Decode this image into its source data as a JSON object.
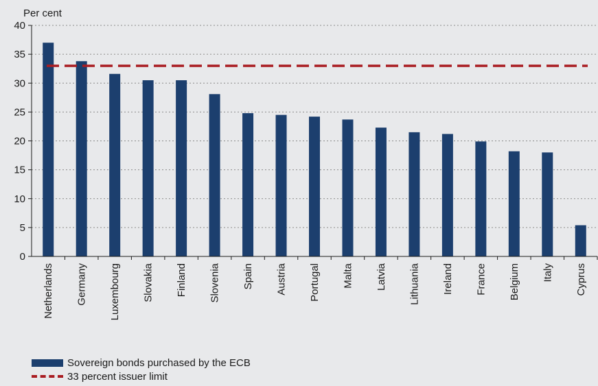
{
  "chart_data": {
    "type": "bar",
    "ylabel": "Per cent",
    "ylim": [
      0,
      40
    ],
    "yticks": [
      0,
      5,
      10,
      15,
      20,
      25,
      30,
      35,
      40
    ],
    "grid": true,
    "categories": [
      "Netherlands",
      "Germany",
      "Luxembourg",
      "Slovakia",
      "Finland",
      "Slovenia",
      "Spain",
      "Austria",
      "Portugal",
      "Malta",
      "Latvia",
      "Lithuania",
      "Ireland",
      "France",
      "Belgium",
      "Italy",
      "Cyprus"
    ],
    "series": [
      {
        "name": "Sovereign bonds purchased by the ECB",
        "values": [
          37.0,
          33.8,
          31.6,
          30.5,
          30.5,
          28.1,
          24.8,
          24.5,
          24.2,
          23.7,
          22.3,
          21.5,
          21.2,
          19.9,
          18.2,
          18.0,
          5.4
        ],
        "color": "#1c3f6e"
      }
    ],
    "reference_line": {
      "name": "33 percent issuer limit",
      "value": 33,
      "color": "#a91d22",
      "style": "dashed"
    },
    "legend_position": "bottom-left"
  }
}
